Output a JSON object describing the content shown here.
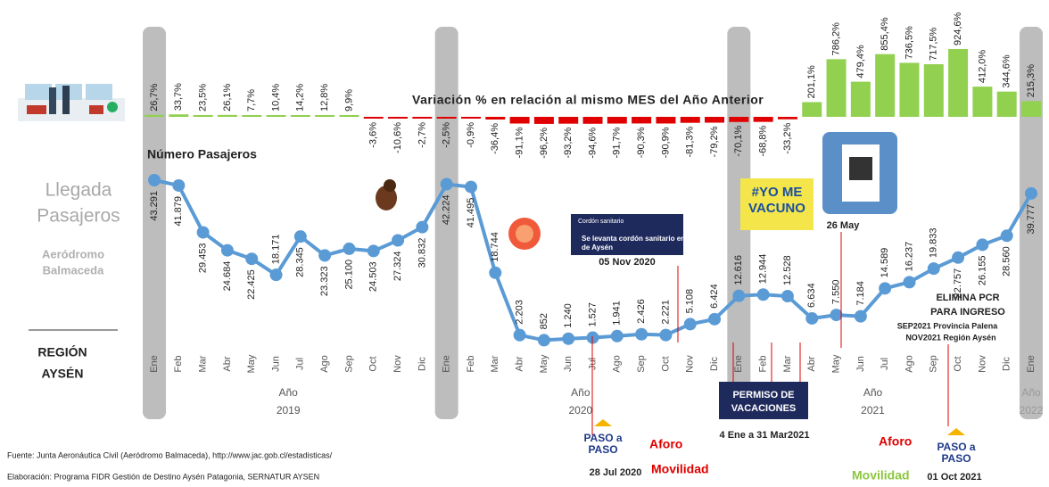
{
  "header": {
    "title": [
      "Llegada",
      "Pasajeros"
    ],
    "airport": [
      "Aeródromo",
      "Balmaceda"
    ],
    "region": [
      "REGIÓN",
      "AYSÉN"
    ]
  },
  "chart_data": {
    "type": "line",
    "categories": [
      "Ene",
      "Feb",
      "Mar",
      "Abr",
      "May",
      "Jun",
      "Jul",
      "Ago",
      "Sep",
      "Oct",
      "Nov",
      "Dic",
      "Ene",
      "Feb",
      "Mar",
      "Abr",
      "May",
      "Jun",
      "Jul",
      "Ago",
      "Sep",
      "Oct",
      "Nov",
      "Dic",
      "Ene",
      "Feb",
      "Mar",
      "Abr",
      "May",
      "Jun",
      "Jul",
      "Ago",
      "Sep",
      "Oct",
      "Nov",
      "Dic",
      "Ene"
    ],
    "years": [
      {
        "label": "Año",
        "year": "2019",
        "from": 0,
        "to": 11
      },
      {
        "label": "Año",
        "year": "2020",
        "from": 12,
        "to": 23
      },
      {
        "label": "Año",
        "year": "2021",
        "from": 24,
        "to": 35
      },
      {
        "label": "Año",
        "year": "2022",
        "from": 36,
        "to": 36
      }
    ],
    "series": [
      {
        "name": "Número Pasajeros",
        "type": "line",
        "color": "#5b9bd5",
        "values": [
          43291,
          41879,
          29453,
          24684,
          22425,
          18171,
          28345,
          23323,
          25100,
          24503,
          27324,
          30832,
          42224,
          41495,
          18744,
          2203,
          852,
          1240,
          1527,
          1941,
          2426,
          2221,
          5108,
          6424,
          12616,
          12944,
          12528,
          6634,
          7550,
          7184,
          14589,
          16237,
          19833,
          22757,
          26155,
          28560,
          39777
        ],
        "value_labels": [
          "43.291",
          "41.879",
          "29.453",
          "24.684",
          "22.425",
          "18.171",
          "28.345",
          "23.323",
          "25.100",
          "24.503",
          "27.324",
          "30.832",
          "42.224",
          "41.495",
          "18.744",
          "2.203",
          "852",
          "1.240",
          "1.527",
          "1.941",
          "2.426",
          "2.221",
          "5.108",
          "6.424",
          "12.616",
          "12.944",
          "12.528",
          "6.634",
          "7.550",
          "7.184",
          "14.589",
          "16.237",
          "19.833",
          "22.757",
          "26.155",
          "28.560",
          "39.777"
        ]
      },
      {
        "name": "Variación % en relación al mismo MES del Año Anterior",
        "type": "bar",
        "color": "#92d050",
        "negative_color": "#e00000",
        "values": [
          26.7,
          33.7,
          23.5,
          26.1,
          7.7,
          10.4,
          14.2,
          12.8,
          9.9,
          -3.6,
          -10.6,
          -2.7,
          -2.5,
          -0.9,
          -36.4,
          -91.1,
          -96.2,
          -93.2,
          -94.6,
          -91.7,
          -90.3,
          -90.9,
          -81.3,
          -79.2,
          -70.1,
          -68.8,
          -33.2,
          201.1,
          786.2,
          479.4,
          855.4,
          736.5,
          717.5,
          924.6,
          412.0,
          344.6,
          215.3
        ],
        "value_labels": [
          "26,7%",
          "33,7%",
          "23,5%",
          "26,1%",
          "7,7%",
          "10,4%",
          "14,2%",
          "12,8%",
          "9,9%",
          "-3,6%",
          "-10,6%",
          "-2,7%",
          "-2,5%",
          "-0,9%",
          "-36,4%",
          "-91,1%",
          "-96,2%",
          "-93,2%",
          "-94,6%",
          "-91,7%",
          "-90,3%",
          "-90,9%",
          "-81,3%",
          "-79,2%",
          "-70,1%",
          "-68,8%",
          "-33,2%",
          "201,1%",
          "786,2%",
          "479,4%",
          "855,4%",
          "736,5%",
          "717,5%",
          "924,6%",
          "412,0%",
          "344,6%",
          "215,3%"
        ]
      }
    ]
  },
  "annotations": {
    "cordon_heading": "Cordón sanitario",
    "cordon_text": [
      "Se levanta cordón sanitario en región",
      "de Aysén"
    ],
    "cordon_date": "05 Nov 2020",
    "vaccine": [
      "#YO ME",
      "VACUNO"
    ],
    "pass_date": "26 May",
    "pcr": [
      "ELIMINA PCR",
      "PARA INGRESO"
    ],
    "pcr_detail": [
      "SEP2021 Provincia Palena",
      "NOV2021 Región Aysén"
    ],
    "vacation": [
      "PERMISO DE",
      "VACACIONES"
    ],
    "vacation_dates": "4 Ene a 31 Mar2021",
    "paso_logo": [
      "PASO a",
      "PASO"
    ],
    "phase_start_date": "28 Jul 2020",
    "aforo_start": "Aforo",
    "movilidad_start": "Movilidad",
    "aforo_end": "Aforo",
    "movilidad_end": "Movilidad",
    "phase_end_date": "01 Oct 2021"
  },
  "footer": {
    "source": "Fuente: Junta Aeronáutica Civil (Aeródromo Balmaceda), http://www.jac.gob.cl/estadisticas/",
    "credits": "Elaboración: Programa FIDR Gestión de Destino Aysén Patagonia, SERNATUR AYSEN"
  }
}
